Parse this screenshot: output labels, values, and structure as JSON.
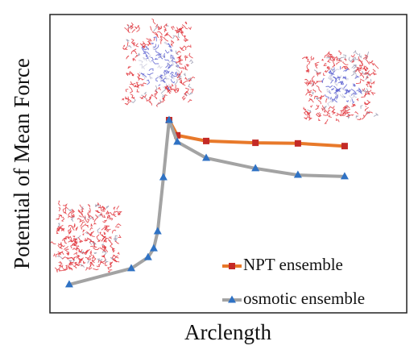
{
  "chart_data": {
    "type": "line",
    "x_label": "Arclength",
    "y_label": "Potential of Mean Force",
    "x": [
      5.4,
      22.8,
      27.5,
      29.1,
      30.2,
      31.8,
      33.4,
      35.7,
      43.8,
      57.6,
      69.5,
      82.6
    ],
    "xlim": [
      0,
      100
    ],
    "ylim": [
      0,
      100
    ],
    "legend": "lower right",
    "series": [
      {
        "name": "NPT ensemble",
        "color": "#e8792a",
        "marker": "square",
        "marker_color": "#c42a26",
        "values": [
          null,
          null,
          null,
          null,
          null,
          null,
          64.6,
          59.5,
          57.6,
          57.0,
          56.8,
          55.9
        ]
      },
      {
        "name": "osmotic ensemble",
        "color": "#a3a3a3",
        "marker": "triangle",
        "marker_color": "#2f72c4",
        "values": [
          9.5,
          14.9,
          18.6,
          21.6,
          27.3,
          45.4,
          64.6,
          57.3,
          51.9,
          48.4,
          46.2,
          45.7
        ]
      }
    ]
  }
}
